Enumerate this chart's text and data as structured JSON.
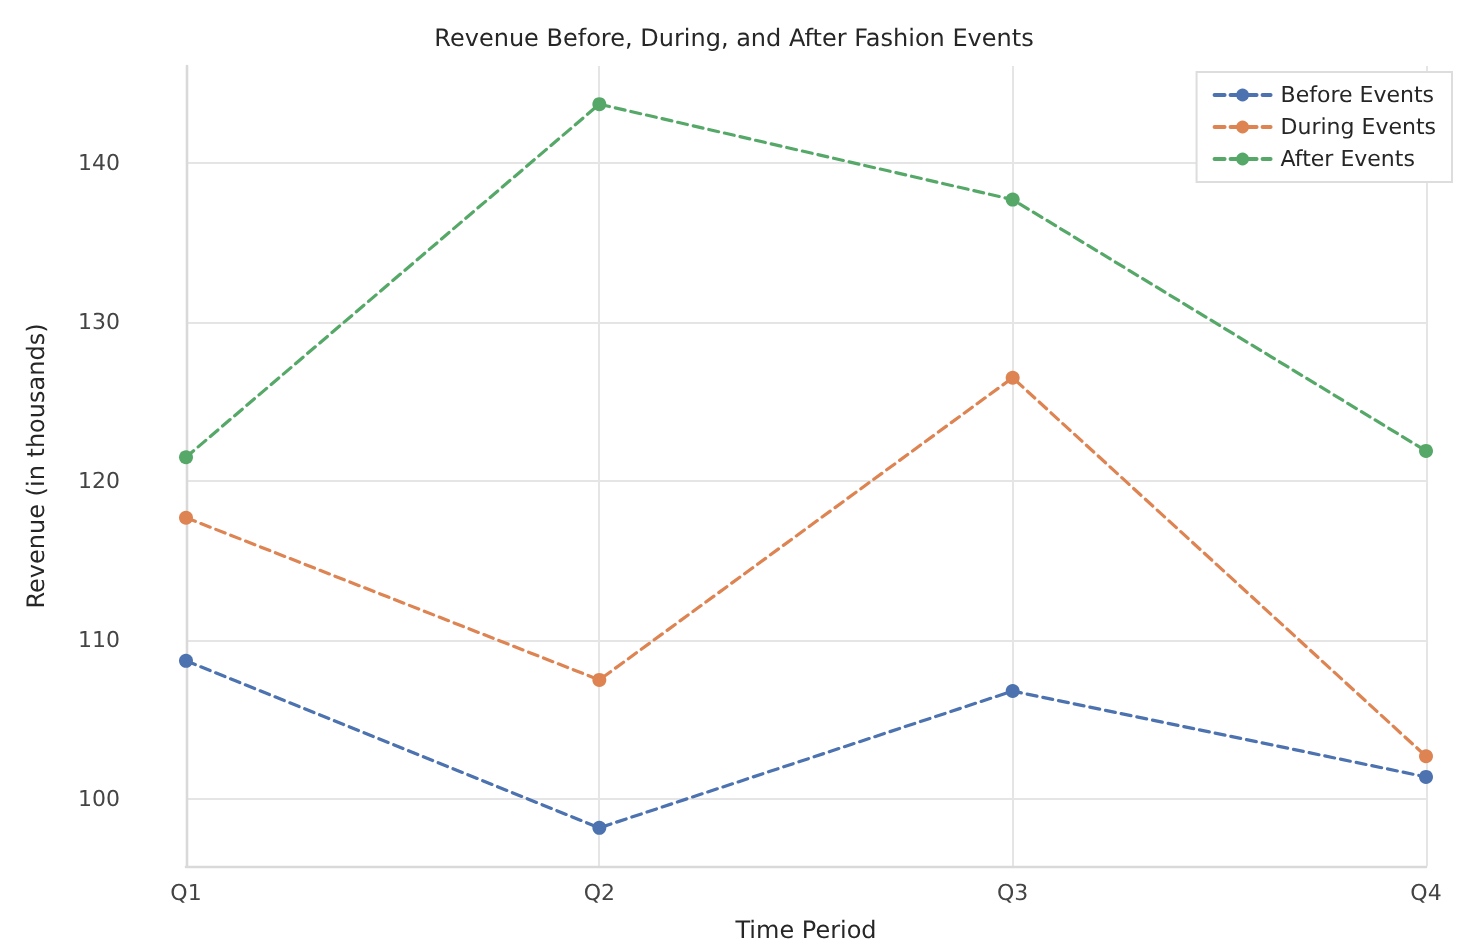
{
  "chart_data": {
    "type": "line",
    "title": "Revenue Before, During, and After Fashion Events",
    "xlabel": "Time Period",
    "ylabel": "Revenue (in thousands)",
    "categories": [
      "Q1",
      "Q2",
      "Q3",
      "Q4"
    ],
    "series": [
      {
        "name": "Before Events",
        "color": "#4c72b0",
        "values": [
          108.7,
          98.2,
          106.8,
          101.4
        ]
      },
      {
        "name": "During Events",
        "color": "#dd8452",
        "values": [
          117.7,
          107.5,
          126.5,
          102.7
        ]
      },
      {
        "name": "After Events",
        "color": "#55a868",
        "values": [
          121.5,
          143.7,
          137.7,
          121.9
        ]
      }
    ],
    "ylim": [
      95.8,
      146.1
    ],
    "yticks": [
      100,
      110,
      120,
      130,
      140
    ],
    "grid": true,
    "legend": "top right",
    "marker": "circle",
    "line_style": "dashed"
  }
}
